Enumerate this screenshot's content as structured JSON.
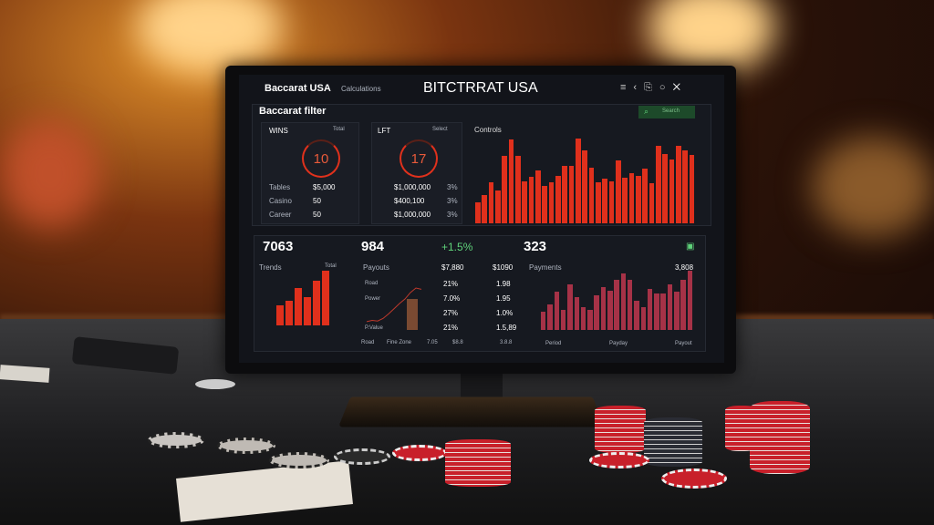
{
  "app": {
    "brand": "Baccarat USA",
    "brand_sub": "Calculations",
    "title": "BITCTRRAT USA",
    "toolbar_icons": [
      "menu-icon",
      "share-icon",
      "export-icon",
      "chat-icon",
      "close-icon"
    ]
  },
  "filter": {
    "title": "Baccarat filter",
    "search_label": "Search"
  },
  "wins": {
    "title": "WINS",
    "dropdown": "Total",
    "ring_value": "10",
    "rows": [
      {
        "label": "Tables",
        "value": "$5,000"
      },
      {
        "label": "Casino",
        "value": "50"
      },
      {
        "label": "Career",
        "value": "50"
      }
    ]
  },
  "left": {
    "title": "LFT",
    "dropdown": "Select",
    "ring_value": "17",
    "rows": [
      {
        "value": "$1,000,000",
        "pct": "3%"
      },
      {
        "value": "$400,100",
        "pct": "3%"
      },
      {
        "value": "$1,000,000",
        "pct": "3%"
      }
    ]
  },
  "bottom": {
    "stat1": "7063",
    "stat2": "984",
    "change": "+1.5%",
    "stat3": "323",
    "trends": {
      "title": "Trends",
      "tag": "Total"
    },
    "payouts": {
      "title": "Payouts",
      "val_head": "$7,880",
      "val2_head": "$1090",
      "labels": [
        "Road",
        "Power",
        "P.Value"
      ],
      "col1": [
        "21%",
        "7.0%",
        "27%",
        "21%"
      ],
      "col2": [
        "1.98",
        "1.95",
        "1.0%",
        "1.5,89"
      ],
      "footer": [
        "Road",
        "Fine Zone",
        "7.05",
        "$8.8",
        "3.8.8"
      ]
    },
    "payments": {
      "title": "Payments",
      "tag": "3,808",
      "footer": [
        "Period",
        "Payday",
        "Payout"
      ]
    }
  },
  "chart_data": [
    {
      "type": "bar",
      "title": "Controls",
      "values": [
        25,
        33,
        48,
        38,
        79,
        98,
        79,
        49,
        54,
        62,
        44,
        48,
        55,
        67,
        67,
        99,
        85,
        65,
        48,
        52,
        49,
        74,
        53,
        59,
        55,
        64,
        47,
        90,
        81,
        75,
        90,
        85,
        80
      ],
      "color": "#e0301c"
    },
    {
      "type": "bar",
      "title": "Trends",
      "values": [
        20,
        25,
        38,
        28,
        45,
        55
      ],
      "color": "#e0301c"
    },
    {
      "type": "line",
      "title": "Payouts",
      "values": [
        10,
        12,
        11,
        15,
        22,
        30,
        38,
        45,
        55,
        62,
        60
      ],
      "color": "#c0392b"
    },
    {
      "type": "bar",
      "title": "Payments",
      "values": [
        20,
        28,
        42,
        22,
        50,
        36,
        25,
        22,
        38,
        47,
        43,
        55,
        62,
        55,
        32,
        25,
        45,
        40,
        40,
        50,
        42,
        55,
        65
      ],
      "color": "#a63247"
    }
  ]
}
